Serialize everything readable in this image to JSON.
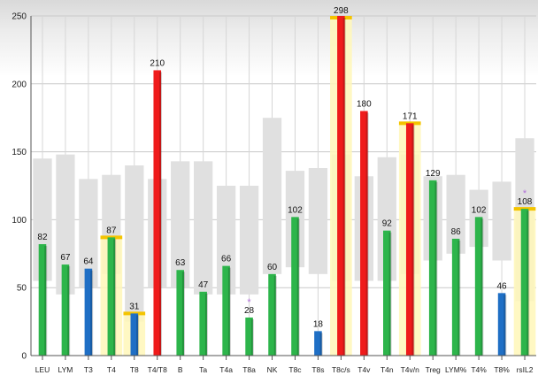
{
  "chart_data": {
    "type": "bar",
    "ylim": [
      0,
      250
    ],
    "yticks": [
      0,
      50,
      100,
      150,
      200,
      250
    ],
    "grid": true,
    "categories": [
      "LEU",
      "LYM",
      "T3",
      "T4",
      "T8",
      "T4/T8",
      "B",
      "Ta",
      "T4a",
      "T8a",
      "NK",
      "T8c",
      "T8s",
      "T8c/s",
      "T4v",
      "T4n",
      "T4v/n",
      "Treg",
      "LYM%",
      "T4%",
      "T8%",
      "rsIL2"
    ],
    "values": [
      82,
      67,
      64,
      87,
      31,
      210,
      63,
      47,
      66,
      28,
      60,
      102,
      18,
      298,
      180,
      92,
      171,
      129,
      86,
      102,
      46,
      108
    ],
    "value_labels": [
      "82",
      "67",
      "64",
      "87",
      "31",
      "210",
      "63",
      "47",
      "66",
      "28",
      "60",
      "102",
      "18",
      "298",
      "180",
      "92",
      "171",
      "129",
      "86",
      "102",
      "46",
      "108"
    ],
    "status": [
      "normal",
      "normal",
      "low",
      "normal",
      "low",
      "high",
      "normal",
      "normal",
      "normal",
      "normal",
      "normal",
      "normal",
      "low",
      "high",
      "high",
      "normal",
      "high",
      "normal",
      "normal",
      "normal",
      "low",
      "normal"
    ],
    "reference_range": [
      [
        55,
        145
      ],
      [
        45,
        148
      ],
      [
        50,
        130
      ],
      [
        60,
        133
      ],
      [
        25,
        140
      ],
      [
        50,
        130
      ],
      [
        50,
        143
      ],
      [
        45,
        143
      ],
      [
        45,
        125
      ],
      [
        45,
        125
      ],
      [
        60,
        175
      ],
      [
        65,
        136
      ],
      [
        60,
        138
      ],
      [
        55,
        148
      ],
      [
        55,
        132
      ],
      [
        55,
        146
      ],
      [
        60,
        148
      ],
      [
        70,
        132
      ],
      [
        75,
        133
      ],
      [
        80,
        122
      ],
      [
        70,
        128
      ],
      [
        40,
        160
      ]
    ],
    "highlighted": [
      false,
      false,
      false,
      true,
      true,
      false,
      false,
      false,
      false,
      false,
      false,
      false,
      false,
      true,
      false,
      false,
      true,
      false,
      false,
      false,
      false,
      true
    ],
    "marked": [
      false,
      false,
      false,
      false,
      false,
      false,
      false,
      false,
      false,
      true,
      false,
      false,
      false,
      false,
      false,
      false,
      false,
      false,
      false,
      false,
      false,
      true
    ],
    "marker_symbol": "*",
    "colors": {
      "normal": "#2db54b",
      "low": "#1f6fc5",
      "high": "#ef1b1b",
      "range_band": "#e0e0e0",
      "highlight_fill": "#fff7b8",
      "highlight_edge": "#f4c400",
      "gridline": "#c9c9c9",
      "marker": "#b070d8"
    }
  }
}
